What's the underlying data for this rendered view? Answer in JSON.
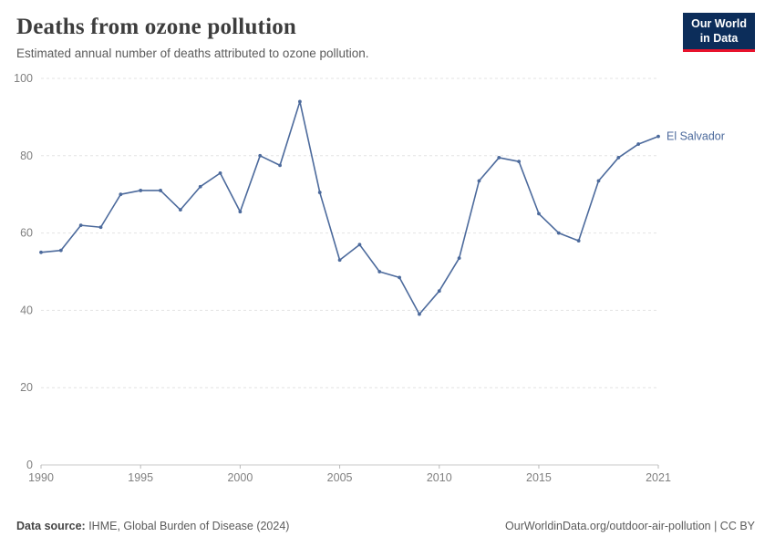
{
  "header": {
    "title": "Deaths from ozone pollution",
    "subtitle": "Estimated annual number of deaths attributed to ozone pollution.",
    "logo_line1": "Our World",
    "logo_line2": "in Data"
  },
  "footer": {
    "source_label": "Data source:",
    "source_text": " IHME, Global Burden of Disease (2024)",
    "right_text": "OurWorldinData.org/outdoor-air-pollution | CC BY"
  },
  "chart_data": {
    "type": "line",
    "title": "Deaths from ozone pollution",
    "xlabel": "",
    "ylabel": "",
    "xlim": [
      1990,
      2021
    ],
    "ylim": [
      0,
      100
    ],
    "yticks": [
      0,
      20,
      40,
      60,
      80,
      100
    ],
    "xticks": [
      1990,
      1995,
      2000,
      2005,
      2010,
      2015,
      2021
    ],
    "grid": true,
    "grid_style": "dashed-horizontal",
    "legend_position": "end-of-line-label",
    "series": [
      {
        "name": "El Salvador",
        "color": "#4c6a9c",
        "x": [
          1990,
          1991,
          1992,
          1993,
          1994,
          1995,
          1996,
          1997,
          1998,
          1999,
          2000,
          2001,
          2002,
          2003,
          2004,
          2005,
          2006,
          2007,
          2008,
          2009,
          2010,
          2011,
          2012,
          2013,
          2014,
          2015,
          2016,
          2017,
          2018,
          2019,
          2020,
          2021
        ],
        "values": [
          55,
          55.5,
          62,
          61.5,
          70,
          71,
          71,
          66,
          72,
          75.5,
          65.5,
          80,
          77.5,
          94,
          70.5,
          53,
          57,
          50,
          48.5,
          39,
          45,
          53.5,
          73.5,
          79.5,
          78.5,
          65,
          60,
          58,
          73.5,
          79.5,
          83,
          85
        ]
      }
    ]
  }
}
